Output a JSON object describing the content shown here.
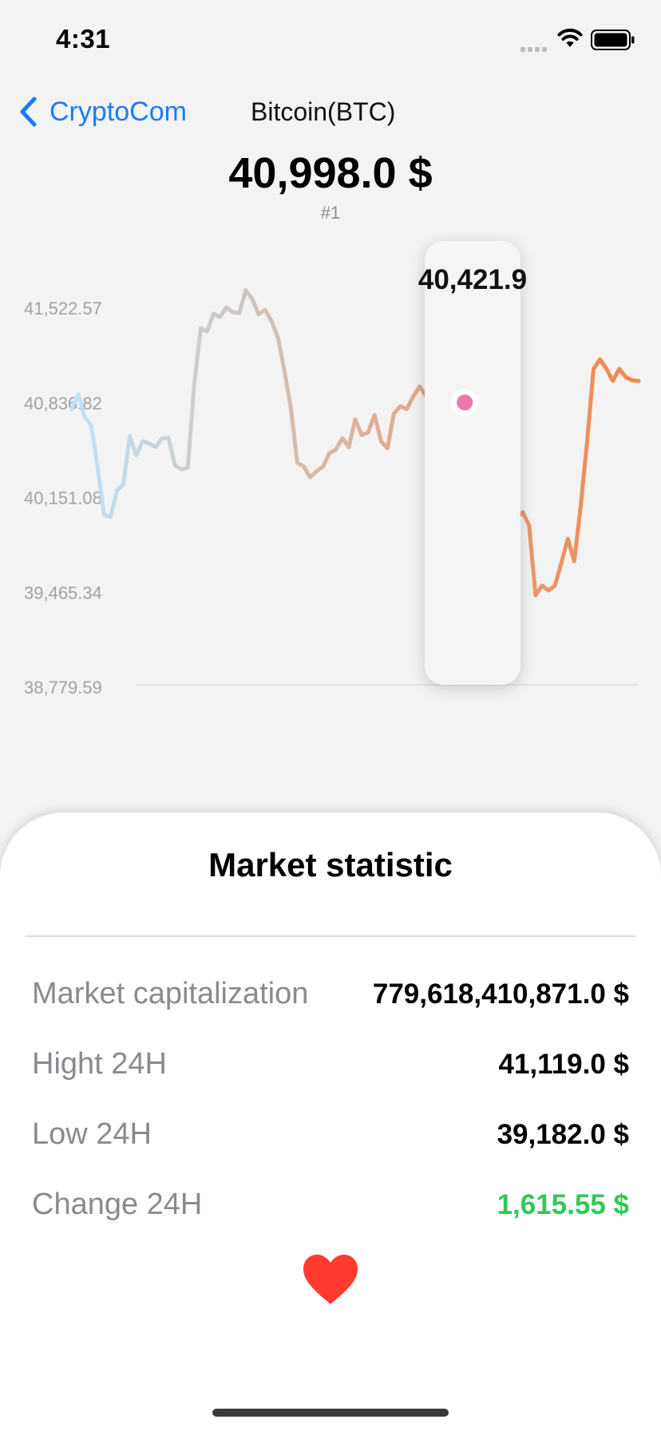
{
  "status_bar": {
    "time": "4:31"
  },
  "nav": {
    "back_label": "CryptoCom",
    "title": "Bitcoin(BTC)"
  },
  "coin": {
    "price": "40,998.0 $",
    "rank": "#1"
  },
  "chart_data": {
    "type": "line",
    "title": "",
    "xlabel": "",
    "ylabel": "",
    "y_tick_labels": [
      "41,522.57",
      "40,836.82",
      "40,151.08",
      "39,465.34",
      "38,779.59"
    ],
    "ylim": [
      38779.59,
      41522.57
    ],
    "grid": false,
    "selected_index": 61,
    "selected_value_label": "40,421.9",
    "gradient_colors": [
      "#bfe3f8",
      "#d9b7a3",
      "#f4874a"
    ],
    "series": [
      {
        "values": [
          40366,
          40490,
          40300,
          40230,
          39883,
          39490,
          39470,
          39690,
          39740,
          40143,
          39982,
          40100,
          40080,
          40051,
          40124,
          40127,
          39900,
          39865,
          39880,
          40566,
          41037,
          41012,
          41159,
          41130,
          41210,
          41170,
          41163,
          41353,
          41280,
          41152,
          41190,
          41095,
          40958,
          40683,
          40378,
          39920,
          39891,
          39800,
          39850,
          39890,
          40000,
          40030,
          40125,
          40050,
          40281,
          40150,
          40172,
          40318,
          40100,
          40040,
          40328,
          40390,
          40365,
          40470,
          40553,
          40472,
          40511,
          40455,
          40318,
          40278,
          40431,
          40421,
          40370,
          40457,
          40460,
          40335,
          40302,
          40350,
          40180,
          39460,
          39510,
          39400,
          38820,
          38900,
          38860,
          38900,
          39090,
          39290,
          39103,
          39560,
          40100,
          40700,
          40779,
          40700,
          40600,
          40700,
          40630,
          40605,
          40600
        ]
      }
    ]
  },
  "market": {
    "title": "Market statistic",
    "rows": [
      {
        "label": "Market capitalization",
        "value": "779,618,410,871.0 $"
      },
      {
        "label": "Hight 24H",
        "value": "41,119.0 $"
      },
      {
        "label": "Low 24H",
        "value": "39,182.0 $"
      },
      {
        "label": "Change 24H",
        "value": "1,615.55 $"
      }
    ]
  },
  "colors": {
    "accent": "#1a7cf5",
    "positive": "#34c759",
    "favorite": "#ff3b30"
  },
  "icons": {
    "back": "chevron-left-icon",
    "favorite": "heart-icon",
    "wifi": "wifi-icon",
    "battery": "battery-icon"
  }
}
